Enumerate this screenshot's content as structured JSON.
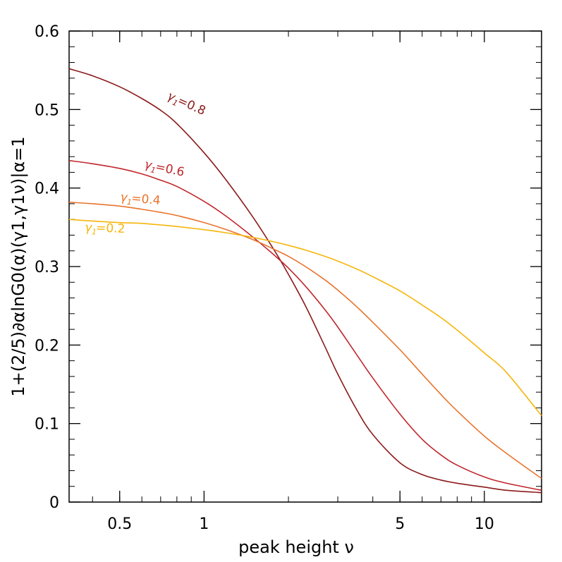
{
  "chart_data": {
    "type": "line",
    "title": "",
    "xlabel": "peak height ν",
    "ylabel": "1+(2/5)∂αlnG0(α)(γ1,γ1ν)|α=1",
    "xscale": "log",
    "xlim": [
      0.33,
      16
    ],
    "ylim": [
      0,
      0.6
    ],
    "xticks": [
      {
        "value": 0.5,
        "label": "0.5"
      },
      {
        "value": 1,
        "label": "1"
      },
      {
        "value": 5,
        "label": "5"
      },
      {
        "value": 10,
        "label": "10"
      }
    ],
    "yticks": [
      {
        "value": 0,
        "label": "0"
      },
      {
        "value": 0.1,
        "label": "0.1"
      },
      {
        "value": 0.2,
        "label": "0.2"
      },
      {
        "value": 0.3,
        "label": "0.3"
      },
      {
        "value": 0.4,
        "label": "0.4"
      },
      {
        "value": 0.5,
        "label": "0.5"
      },
      {
        "value": 0.6,
        "label": "0.6"
      }
    ],
    "grid": false,
    "series": [
      {
        "name": "γ1=0.8",
        "label_text": "=0.8",
        "color": "#8b1a1a",
        "x": [
          0.33,
          0.4,
          0.5,
          0.6,
          0.7,
          0.8,
          1.0,
          1.2,
          1.5,
          1.8,
          2.0,
          2.3,
          2.7,
          3.0,
          3.5,
          4.0,
          5.0,
          6.0,
          7.0,
          8.0,
          10.0,
          12.0,
          16.0
        ],
        "y": [
          0.552,
          0.543,
          0.529,
          0.514,
          0.499,
          0.482,
          0.445,
          0.41,
          0.362,
          0.318,
          0.29,
          0.25,
          0.198,
          0.163,
          0.118,
          0.086,
          0.05,
          0.035,
          0.028,
          0.024,
          0.019,
          0.015,
          0.012
        ]
      },
      {
        "name": "γ1=0.6",
        "label_text": "=0.6",
        "color": "#c0262c",
        "x": [
          0.33,
          0.4,
          0.5,
          0.6,
          0.7,
          0.8,
          1.0,
          1.2,
          1.5,
          1.8,
          2.0,
          2.3,
          2.7,
          3.0,
          3.5,
          4.0,
          5.0,
          6.0,
          7.0,
          8.0,
          10.0,
          12.0,
          16.0
        ],
        "y": [
          0.435,
          0.431,
          0.425,
          0.418,
          0.41,
          0.402,
          0.383,
          0.364,
          0.337,
          0.313,
          0.298,
          0.275,
          0.245,
          0.223,
          0.188,
          0.158,
          0.112,
          0.08,
          0.06,
          0.047,
          0.032,
          0.024,
          0.015
        ]
      },
      {
        "name": "γ1=0.4",
        "label_text": "=0.4",
        "color": "#e8742c",
        "x": [
          0.33,
          0.4,
          0.5,
          0.6,
          0.7,
          0.8,
          1.0,
          1.2,
          1.5,
          1.8,
          2.0,
          2.3,
          2.7,
          3.0,
          3.5,
          4.0,
          5.0,
          6.0,
          7.0,
          8.0,
          10.0,
          12.0,
          16.0
        ],
        "y": [
          0.382,
          0.38,
          0.377,
          0.373,
          0.369,
          0.365,
          0.356,
          0.347,
          0.334,
          0.321,
          0.313,
          0.3,
          0.283,
          0.27,
          0.249,
          0.229,
          0.194,
          0.163,
          0.137,
          0.116,
          0.084,
          0.062,
          0.03
        ]
      },
      {
        "name": "γ1=0.2",
        "label_text": "=0.2",
        "color": "#f5b50a",
        "x": [
          0.33,
          0.4,
          0.5,
          0.6,
          0.7,
          0.8,
          1.0,
          1.2,
          1.5,
          1.8,
          2.0,
          2.3,
          2.7,
          3.0,
          3.5,
          4.0,
          5.0,
          6.0,
          7.0,
          8.0,
          10.0,
          12.0,
          16.0
        ],
        "y": [
          0.36,
          0.358,
          0.356,
          0.355,
          0.353,
          0.351,
          0.347,
          0.343,
          0.337,
          0.331,
          0.327,
          0.321,
          0.313,
          0.307,
          0.297,
          0.287,
          0.269,
          0.251,
          0.235,
          0.219,
          0.19,
          0.165,
          0.11
        ]
      }
    ]
  }
}
